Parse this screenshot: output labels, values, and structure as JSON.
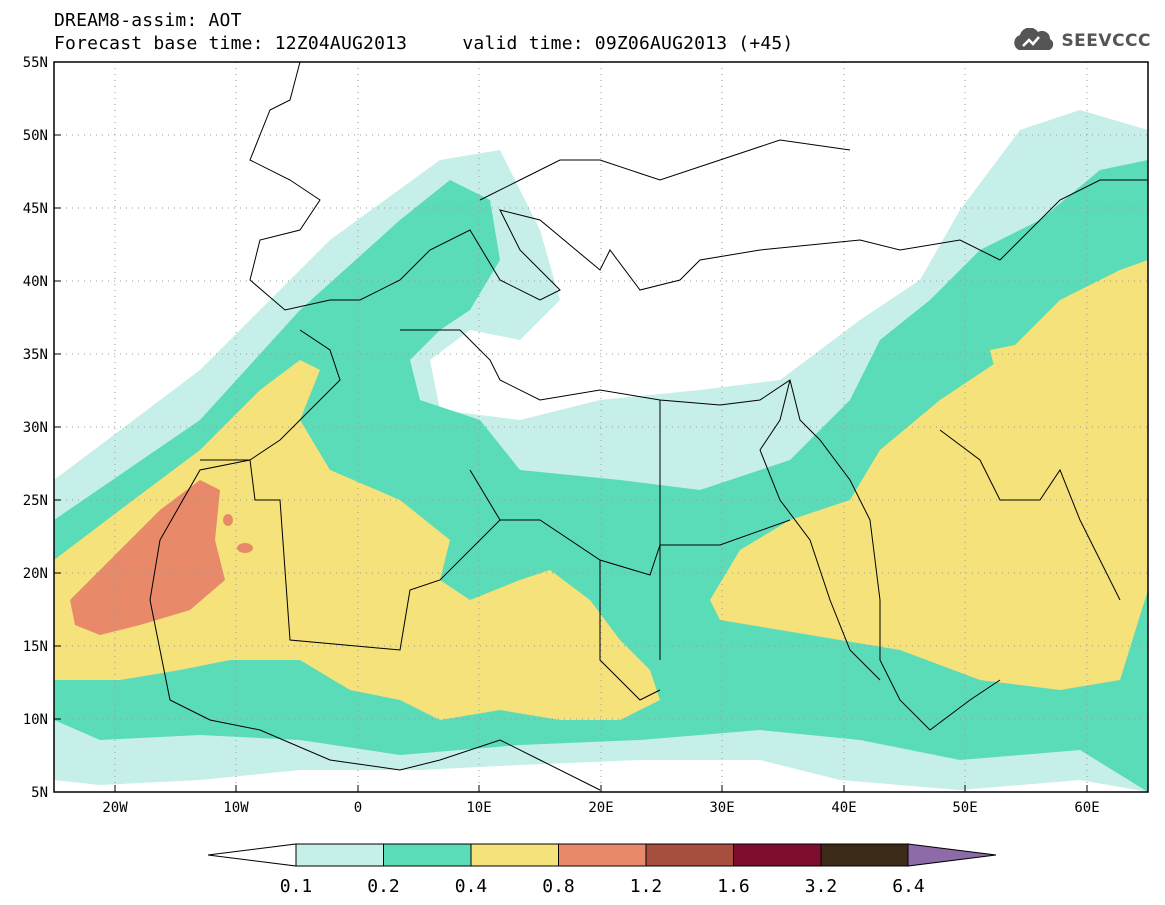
{
  "header": {
    "line1": "DREAM8-assim: AOT",
    "line2": "Forecast base time: 12Z04AUG2013     valid time: 09Z06AUG2013 (+45)"
  },
  "brand": {
    "name": "SEEVCCC",
    "icon": "cloud-logo-icon"
  },
  "map": {
    "lon_range": [
      -25,
      65
    ],
    "lat_range": [
      5,
      55
    ],
    "lon_labels": [
      "20W",
      "10W",
      "0",
      "10E",
      "20E",
      "30E",
      "40E",
      "50E",
      "60E"
    ],
    "lat_labels": [
      "55N",
      "50N",
      "45N",
      "40N",
      "35N",
      "30N",
      "25N",
      "20N",
      "15N",
      "10N",
      "5N"
    ]
  },
  "colorbar": {
    "labels": [
      "0.1",
      "0.2",
      "0.4",
      "0.8",
      "1.2",
      "1.6",
      "3.2",
      "6.4"
    ],
    "colors": [
      "#c5efe8",
      "#5bdcb8",
      "#f5e27a",
      "#e8896a",
      "#a84e3e",
      "#7e0e2e",
      "#3c2a18",
      "#8d6aa8"
    ],
    "under_color": "#ffffff"
  }
}
